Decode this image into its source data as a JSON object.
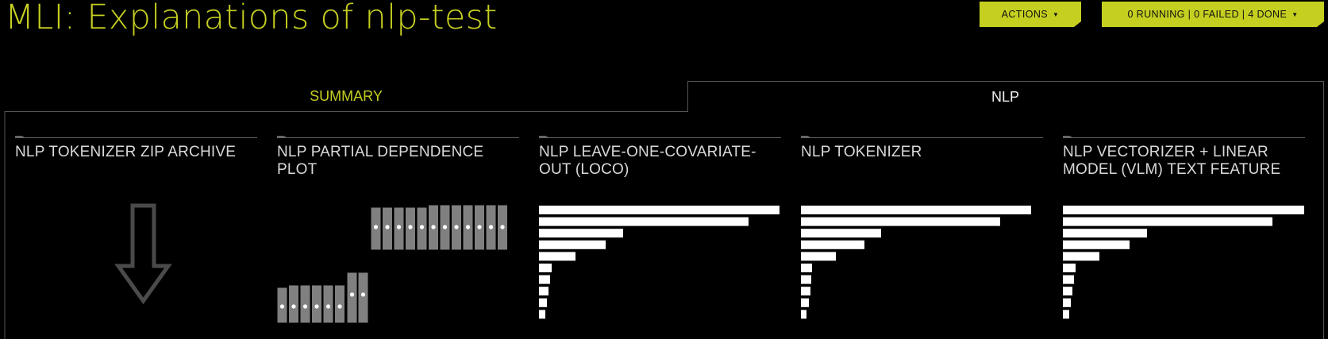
{
  "title": "MLI: Explanations of nlp-test",
  "actions_label": "ACTIONS",
  "jobs_label": "0 RUNNING | 0 FAILED | 4 DONE",
  "tabs": [
    {
      "label": "SUMMARY",
      "active": false
    },
    {
      "label": "NLP",
      "active": true
    }
  ],
  "panels": [
    {
      "title": "NLP TOKENIZER ZIP ARCHIVE",
      "viz": "download-arrow-icon"
    },
    {
      "title": "NLP PARTIAL DEPENDENCE PLOT",
      "viz": "dependence-plot-icon"
    },
    {
      "title": "NLP LEAVE-ONE-COVARIATE-OUT (LOCO)",
      "viz": "bar-chart-icon"
    },
    {
      "title": "NLP TOKENIZER",
      "viz": "bar-chart-icon"
    },
    {
      "title": "NLP VECTORIZER + LINEAR MODEL (VLM) TEXT FEATURE",
      "viz": "bar-chart-icon"
    }
  ],
  "colors": {
    "accent": "#c5cf20",
    "background": "#000000",
    "bars": "#ffffff",
    "pdp": "#808080"
  }
}
